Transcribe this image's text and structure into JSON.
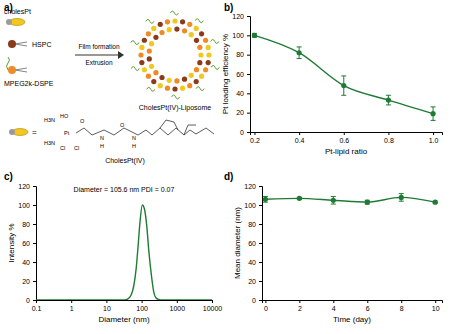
{
  "panel_labels": [
    "a)",
    "b)",
    "c)",
    "d)"
  ],
  "diagram": {
    "labels": [
      "cholesPt",
      "HSPC",
      "MPEG2k-DSPE",
      "Film formation",
      "Extrusion",
      "CholesPt(IV)-Liposome",
      "CholesPt(IV)"
    ],
    "atoms": [
      "H3N",
      "H3N",
      "HO",
      "Cl",
      "Cl",
      "Pt",
      "O",
      "N",
      "H",
      "O",
      "N",
      "H"
    ]
  },
  "chart_data": [
    {
      "type": "line",
      "xlabel": "Pt-lipid ratio",
      "ylabel": "Pt loading efficiency %",
      "x": [
        0.2,
        0.4,
        0.6,
        0.8,
        1.0
      ],
      "series": [
        {
          "name": "Pt loading efficiency",
          "color": "#1e7b34",
          "marker": "circle",
          "line_style": "solid",
          "values": [
            100,
            82,
            48,
            33,
            19
          ],
          "errors": [
            2,
            6,
            10,
            5,
            7
          ]
        }
      ],
      "xlim": [
        0.18,
        1.04
      ],
      "xticks": [
        0.2,
        0.4,
        0.6,
        0.8,
        {
          "value": 1,
          "label": "1.0"
        }
      ],
      "ylim": [
        0,
        120
      ],
      "yticks": [
        0,
        20,
        40,
        60,
        80,
        100,
        120
      ],
      "grid": false
    },
    {
      "type": "line",
      "xlabel": "Diameter (nm)",
      "ylabel": "Intensity %",
      "log": "x",
      "annotations": [
        "Diameter = 105.6 nm  PDI = 0.07"
      ],
      "x": [
        0.1,
        1,
        10,
        30,
        40,
        50,
        60,
        70,
        80,
        90,
        105,
        120,
        140,
        160,
        190,
        220,
        260,
        350,
        1000,
        10000
      ],
      "series": [
        {
          "name": "Intensity",
          "color": "#1e7b34",
          "line_style": "solid",
          "values": [
            0,
            0,
            0,
            0,
            1,
            5,
            15,
            33,
            58,
            82,
            100,
            96,
            78,
            52,
            26,
            9,
            2,
            0,
            0,
            0
          ]
        }
      ],
      "xlim": [
        0.1,
        10000
      ],
      "xticks": [
        0.1,
        1,
        10,
        100,
        1000,
        10000
      ],
      "ylim": [
        0,
        120
      ],
      "yticks": [
        0,
        20,
        40,
        60,
        80,
        100,
        120
      ],
      "grid": false
    },
    {
      "type": "line",
      "xlabel": "Time (day)",
      "ylabel": "Mean diameter (nm)",
      "x": [
        0,
        2,
        4,
        6,
        8,
        10
      ],
      "series": [
        {
          "name": "Mean diameter",
          "color": "#1e7b34",
          "marker": "circle",
          "line_style": "solid",
          "values": [
            106,
            107,
            105,
            103,
            108,
            103
          ],
          "errors": [
            3,
            1,
            4,
            2,
            4,
            1
          ]
        }
      ],
      "xlim": [
        -0.2,
        10.4
      ],
      "xticks": [
        0,
        2,
        4,
        6,
        8,
        10
      ],
      "ylim": [
        0,
        120
      ],
      "yticks": [
        0,
        20,
        40,
        60,
        80,
        100,
        120
      ],
      "grid": false
    }
  ]
}
